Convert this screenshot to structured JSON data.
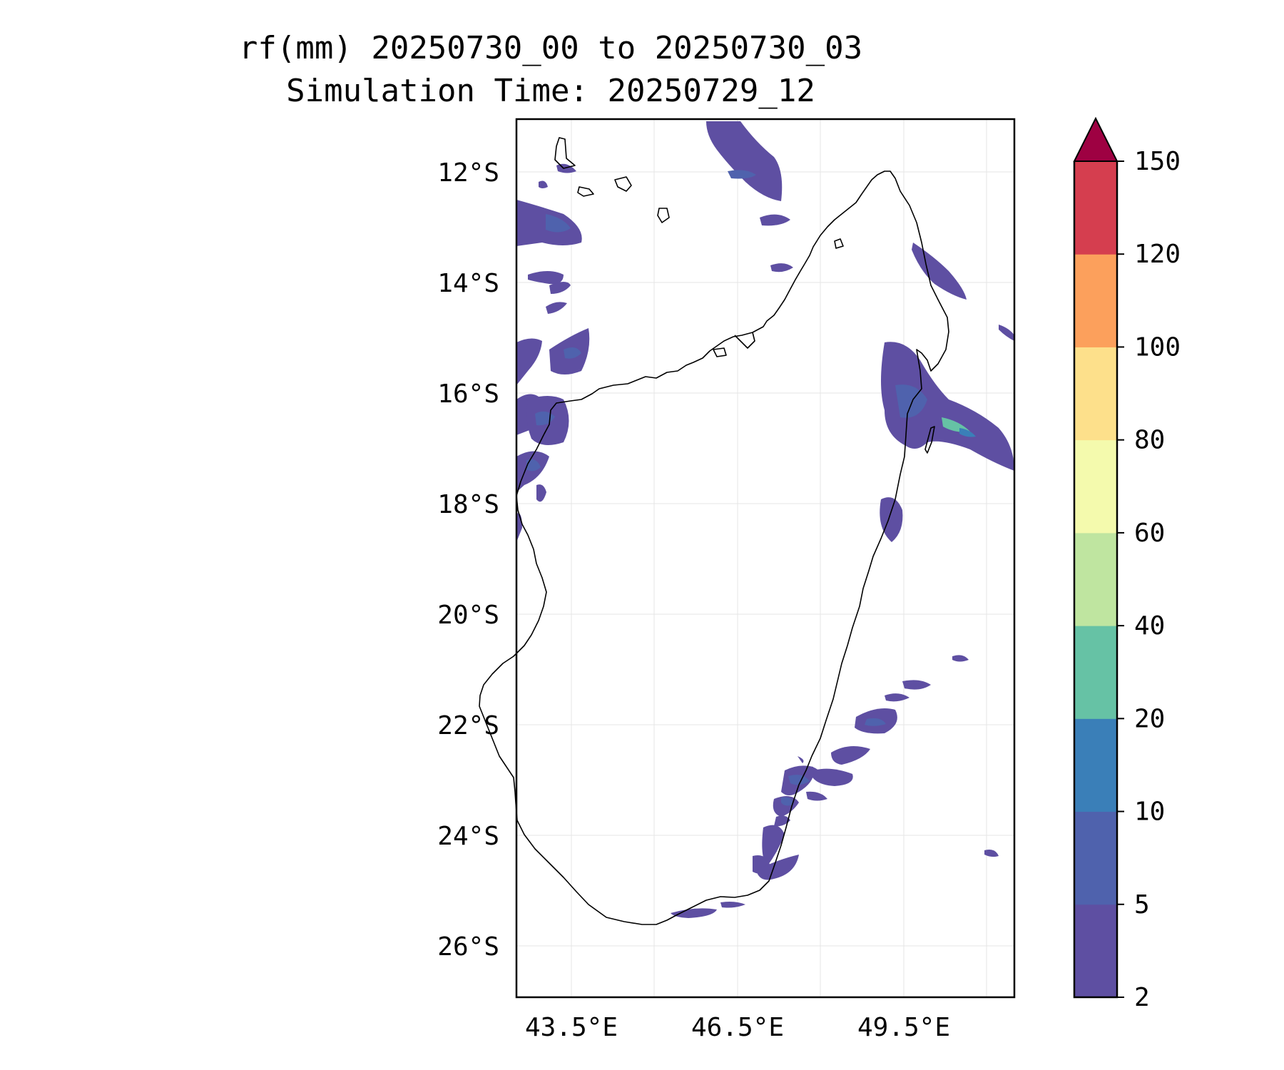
{
  "title": {
    "line1": "rf(mm) 20250730_00 to 20250730_03",
    "line2": "Simulation Time: 20250729_12"
  },
  "map": {
    "region": "Madagascar",
    "lon_range": [
      42.5,
      51.5
    ],
    "lat_range": [
      -27,
      -11.1
    ],
    "lon_ticks": [
      "43.5°E",
      "46.5°E",
      "49.5°E"
    ],
    "lat_ticks": [
      "12°S",
      "14°S",
      "16°S",
      "18°S",
      "20°S",
      "22°S",
      "24°S",
      "26°S"
    ],
    "gridlines": true
  },
  "colorbar": {
    "labels": [
      "2",
      "5",
      "10",
      "20",
      "40",
      "60",
      "80",
      "100",
      "120",
      "150"
    ],
    "colors": [
      "#5e4fa2",
      "#4f62ad",
      "#3a7fb8",
      "#66c2a5",
      "#bfe5a0",
      "#f4faad",
      "#fde08b",
      "#fca05c",
      "#d53e4f"
    ],
    "extend_color": "#9e0142",
    "extend": "max"
  }
}
